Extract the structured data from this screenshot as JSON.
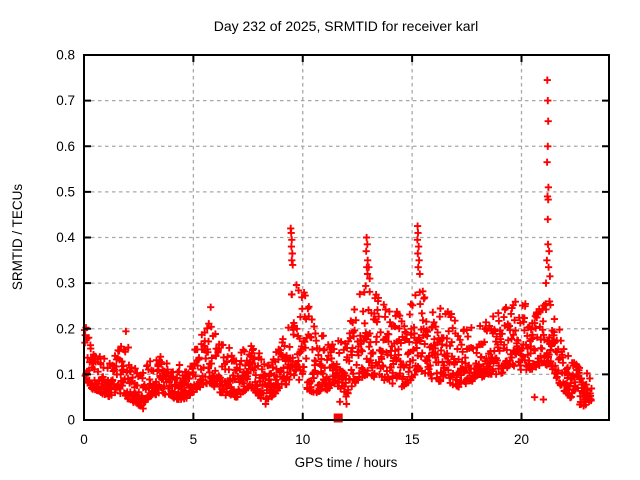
{
  "page": {
    "background": "#ffffff"
  },
  "chart_data": {
    "type": "scatter",
    "title": "Day 232 of 2025, SRMTID for receiver karl",
    "xlabel": "GPS time / hours",
    "ylabel": "SRMTID / TECUs",
    "xlim": [
      0,
      24
    ],
    "ylim": [
      0,
      0.8
    ],
    "xticks": [
      0,
      5,
      10,
      15,
      20
    ],
    "yticks": [
      0,
      0.1,
      0.2,
      0.3,
      0.4,
      0.5,
      0.6,
      0.7,
      0.8
    ],
    "grid": true,
    "legend": "none",
    "colors": {
      "points": "#ff0000",
      "grid": "#a8a8a8",
      "axis": "#000000",
      "background": "#ffffff"
    },
    "series": [
      {
        "name": "srmtid-values",
        "marker": "plus",
        "color": "#ff0000",
        "band_x_range": [
          0.02,
          23.2
        ],
        "band_count": 1500,
        "seed": 2025232,
        "band_envelope": [
          [
            0.0,
            0.09,
            0.22
          ],
          [
            0.3,
            0.07,
            0.17
          ],
          [
            0.7,
            0.06,
            0.14
          ],
          [
            1.2,
            0.05,
            0.13
          ],
          [
            1.6,
            0.06,
            0.16
          ],
          [
            1.9,
            0.05,
            0.2
          ],
          [
            2.2,
            0.04,
            0.12
          ],
          [
            2.6,
            0.03,
            0.1
          ],
          [
            3.0,
            0.05,
            0.13
          ],
          [
            3.5,
            0.06,
            0.14
          ],
          [
            4.0,
            0.05,
            0.13
          ],
          [
            4.5,
            0.04,
            0.12
          ],
          [
            5.0,
            0.06,
            0.15
          ],
          [
            5.5,
            0.08,
            0.21
          ],
          [
            5.8,
            0.08,
            0.26
          ],
          [
            6.2,
            0.06,
            0.18
          ],
          [
            6.6,
            0.05,
            0.16
          ],
          [
            7.0,
            0.05,
            0.14
          ],
          [
            7.5,
            0.07,
            0.17
          ],
          [
            8.0,
            0.05,
            0.15
          ],
          [
            8.4,
            0.04,
            0.12
          ],
          [
            8.8,
            0.06,
            0.15
          ],
          [
            9.2,
            0.07,
            0.19
          ],
          [
            9.5,
            0.1,
            0.33
          ],
          [
            9.8,
            0.09,
            0.29
          ],
          [
            10.1,
            0.07,
            0.28
          ],
          [
            10.5,
            0.06,
            0.21
          ],
          [
            11.0,
            0.06,
            0.19
          ],
          [
            11.5,
            0.08,
            0.18
          ],
          [
            12.0,
            0.05,
            0.17
          ],
          [
            12.4,
            0.08,
            0.27
          ],
          [
            12.9,
            0.1,
            0.3
          ],
          [
            13.3,
            0.09,
            0.29
          ],
          [
            13.8,
            0.08,
            0.25
          ],
          [
            14.2,
            0.08,
            0.26
          ],
          [
            14.6,
            0.07,
            0.21
          ],
          [
            15.0,
            0.09,
            0.27
          ],
          [
            15.3,
            0.11,
            0.3
          ],
          [
            15.7,
            0.1,
            0.27
          ],
          [
            16.1,
            0.08,
            0.24
          ],
          [
            16.5,
            0.09,
            0.27
          ],
          [
            17.0,
            0.07,
            0.22
          ],
          [
            17.5,
            0.08,
            0.21
          ],
          [
            18.0,
            0.09,
            0.21
          ],
          [
            18.5,
            0.1,
            0.22
          ],
          [
            19.0,
            0.1,
            0.24
          ],
          [
            19.5,
            0.11,
            0.26
          ],
          [
            20.0,
            0.11,
            0.27
          ],
          [
            20.5,
            0.11,
            0.23
          ],
          [
            21.0,
            0.12,
            0.27
          ],
          [
            21.3,
            0.12,
            0.28
          ],
          [
            21.6,
            0.09,
            0.22
          ],
          [
            22.0,
            0.06,
            0.16
          ],
          [
            22.4,
            0.04,
            0.13
          ],
          [
            22.8,
            0.03,
            0.11
          ],
          [
            23.2,
            0.04,
            0.1
          ]
        ],
        "extra_points": [
          [
            9.45,
            0.42
          ],
          [
            9.47,
            0.41
          ],
          [
            9.5,
            0.395
          ],
          [
            9.48,
            0.38
          ],
          [
            9.52,
            0.365
          ],
          [
            9.5,
            0.35
          ],
          [
            9.54,
            0.34
          ],
          [
            12.92,
            0.4
          ],
          [
            12.95,
            0.385
          ],
          [
            12.9,
            0.37
          ],
          [
            12.97,
            0.35
          ],
          [
            12.93,
            0.335
          ],
          [
            12.96,
            0.32
          ],
          [
            13.02,
            0.335
          ],
          [
            13.06,
            0.31
          ],
          [
            15.25,
            0.425
          ],
          [
            15.27,
            0.41
          ],
          [
            15.24,
            0.395
          ],
          [
            15.3,
            0.38
          ],
          [
            15.26,
            0.365
          ],
          [
            15.32,
            0.35
          ],
          [
            15.28,
            0.335
          ],
          [
            15.35,
            0.32
          ],
          [
            21.18,
            0.745
          ],
          [
            21.2,
            0.7
          ],
          [
            21.22,
            0.655
          ],
          [
            21.2,
            0.6
          ],
          [
            21.17,
            0.565
          ],
          [
            21.23,
            0.51
          ],
          [
            21.19,
            0.49
          ],
          [
            21.22,
            0.483
          ],
          [
            21.2,
            0.44
          ],
          [
            21.21,
            0.385
          ],
          [
            21.26,
            0.37
          ],
          [
            21.16,
            0.35
          ],
          [
            21.24,
            0.335
          ],
          [
            21.3,
            0.315
          ],
          [
            21.12,
            0.3
          ],
          [
            20.6,
            0.05
          ],
          [
            21.0,
            0.045
          ],
          [
            11.7,
            0.04
          ],
          [
            8.3,
            0.035
          ],
          [
            2.7,
            0.025
          ],
          [
            12.0,
            0.035
          ]
        ]
      },
      {
        "name": "flag-marker",
        "marker": "filled-square",
        "color": "#ff0000",
        "points": [
          [
            11.62,
            0.0
          ]
        ]
      }
    ]
  }
}
